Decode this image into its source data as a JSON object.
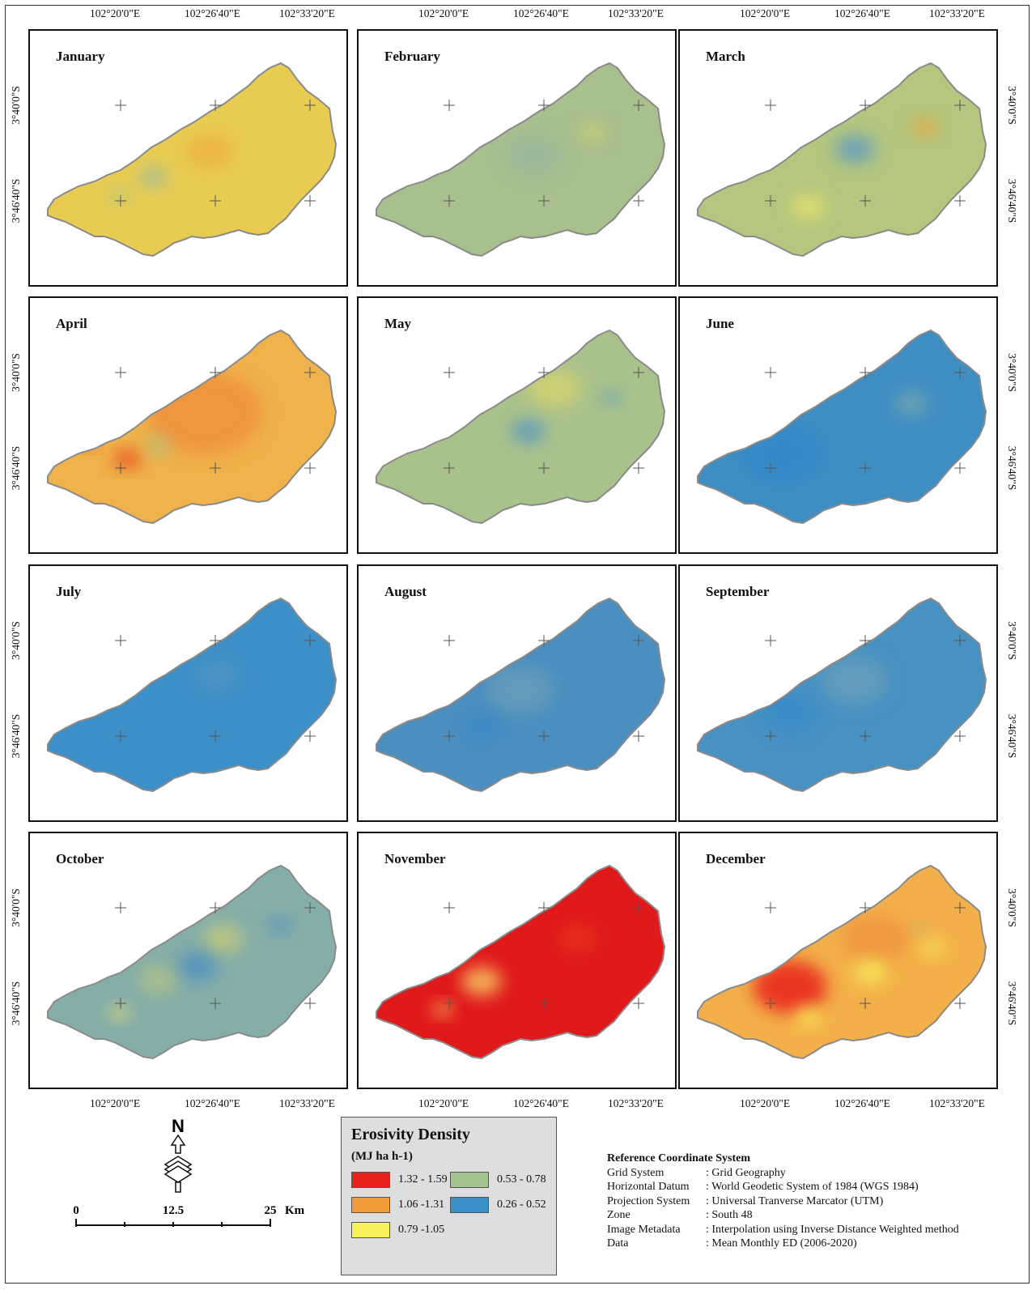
{
  "months": [
    "January",
    "February",
    "March",
    "April",
    "May",
    "June",
    "July",
    "August",
    "September",
    "October",
    "November",
    "December"
  ],
  "lon_ticks": [
    "102°20'0\"E",
    "102°26'40\"E",
    "102°33'20\"E"
  ],
  "lat_ticks": [
    "3°40'0\"S",
    "3°46'40\"S"
  ],
  "legend": {
    "title": "Erosivity Density",
    "unit": "(MJ ha h-1)",
    "classes": [
      {
        "label": "1.32 - 1.59",
        "color": "#e8211d"
      },
      {
        "label": "1.06 -1.31",
        "color": "#f39a3a"
      },
      {
        "label": "0.79 -1.05",
        "color": "#f7f15c"
      },
      {
        "label": "0.53 - 0.78",
        "color": "#a3c48f"
      },
      {
        "label": "0.26 - 0.52",
        "color": "#3a8fc9"
      }
    ]
  },
  "north_arrow": {
    "label": "N",
    "icon": "north-arrow-icon"
  },
  "scale_bar": {
    "labels": [
      "0",
      "12.5",
      "25"
    ],
    "unit": "Km"
  },
  "reference": {
    "title": "Reference Coordinate System",
    "rows": [
      {
        "key": "Grid System",
        "value": ": Grid Geography"
      },
      {
        "key": "Horizontal Datum",
        "value": ": World Geodetic System of 1984 (WGS 1984)"
      },
      {
        "key": "Projection System",
        "value": ": Universal Tranverse Marcator (UTM)"
      },
      {
        "key": "Zone",
        "value": ": South 48"
      },
      {
        "key": "Image Metadata",
        "value": ": Interpolation using Inverse Distance Weighted method"
      },
      {
        "key": "Data",
        "value": ": Mean Monthly ED (2006-2020)"
      }
    ]
  },
  "month_styles": [
    {
      "base": "#e8cc52",
      "blobs": [
        {
          "c": "#f0a23a",
          "a": 0.55,
          "u": 0.57,
          "v": 0.48,
          "r": 0.07
        },
        {
          "c": "#8db7b8",
          "a": 0.7,
          "u": 0.35,
          "v": 0.62,
          "r": 0.04
        },
        {
          "c": "#a3c48f",
          "a": 0.7,
          "u": 0.22,
          "v": 0.72,
          "r": 0.03
        }
      ]
    },
    {
      "base": "#a8bf8e",
      "blobs": [
        {
          "c": "#d9d56b",
          "a": 0.6,
          "u": 0.78,
          "v": 0.38,
          "r": 0.04
        },
        {
          "c": "#8fb3a6",
          "a": 0.5,
          "u": 0.55,
          "v": 0.5,
          "r": 0.08
        }
      ]
    },
    {
      "base": "#b5c77f",
      "blobs": [
        {
          "c": "#f0a23a",
          "a": 0.7,
          "u": 0.82,
          "v": 0.35,
          "r": 0.04
        },
        {
          "c": "#5b98c6",
          "a": 0.75,
          "u": 0.55,
          "v": 0.47,
          "r": 0.06
        },
        {
          "c": "#f2e469",
          "a": 0.7,
          "u": 0.37,
          "v": 0.78,
          "r": 0.05
        }
      ]
    },
    {
      "base": "#f0b24a",
      "blobs": [
        {
          "c": "#ee8a3a",
          "a": 0.7,
          "u": 0.55,
          "v": 0.45,
          "r": 0.17
        },
        {
          "c": "#e8421f",
          "a": 0.8,
          "u": 0.25,
          "v": 0.7,
          "r": 0.04
        },
        {
          "c": "#e8421f",
          "a": 0.7,
          "u": 0.11,
          "v": 0.63,
          "r": 0.02
        },
        {
          "c": "#a3c48f",
          "a": 0.6,
          "u": 0.37,
          "v": 0.63,
          "r": 0.04
        }
      ]
    },
    {
      "base": "#a9c28c",
      "blobs": [
        {
          "c": "#e6d766",
          "a": 0.6,
          "u": 0.63,
          "v": 0.32,
          "r": 0.08
        },
        {
          "c": "#4e8fca",
          "a": 0.7,
          "u": 0.53,
          "v": 0.55,
          "r": 0.05
        },
        {
          "c": "#5b98c6",
          "a": 0.6,
          "u": 0.85,
          "v": 0.37,
          "r": 0.03
        }
      ]
    },
    {
      "base": "#3f8ec3",
      "blobs": [
        {
          "c": "#2e86c9",
          "a": 0.6,
          "u": 0.27,
          "v": 0.67,
          "r": 0.12
        },
        {
          "c": "#8fb3a6",
          "a": 0.55,
          "u": 0.77,
          "v": 0.4,
          "r": 0.05
        }
      ]
    },
    {
      "base": "#3d8fc7",
      "blobs": [
        {
          "c": "#6a9fbd",
          "a": 0.4,
          "u": 0.6,
          "v": 0.42,
          "r": 0.06
        }
      ]
    },
    {
      "base": "#4b8fc0",
      "blobs": [
        {
          "c": "#7aa6b6",
          "a": 0.5,
          "u": 0.5,
          "v": 0.5,
          "r": 0.1
        },
        {
          "c": "#2e86c9",
          "a": 0.6,
          "u": 0.35,
          "v": 0.7,
          "r": 0.05
        }
      ]
    },
    {
      "base": "#4892c3",
      "blobs": [
        {
          "c": "#7aa6b6",
          "a": 0.5,
          "u": 0.55,
          "v": 0.45,
          "r": 0.1
        },
        {
          "c": "#2e86c9",
          "a": 0.5,
          "u": 0.3,
          "v": 0.62,
          "r": 0.08
        }
      ]
    },
    {
      "base": "#86aea8",
      "blobs": [
        {
          "c": "#d9d56b",
          "a": 0.6,
          "u": 0.62,
          "v": 0.4,
          "r": 0.06
        },
        {
          "c": "#3f88c9",
          "a": 0.65,
          "u": 0.52,
          "v": 0.55,
          "r": 0.06
        },
        {
          "c": "#3f88c9",
          "a": 0.7,
          "u": 0.84,
          "v": 0.33,
          "r": 0.03
        },
        {
          "c": "#f2e469",
          "a": 0.7,
          "u": 0.22,
          "v": 0.8,
          "r": 0.03
        },
        {
          "c": "#d9d56b",
          "a": 0.4,
          "u": 0.37,
          "v": 0.62,
          "r": 0.06
        }
      ]
    },
    {
      "base": "#e0191b",
      "blobs": [
        {
          "c": "#f7d36a",
          "a": 0.8,
          "u": 0.35,
          "v": 0.63,
          "r": 0.06
        },
        {
          "c": "#f7d36a",
          "a": 0.7,
          "u": 0.2,
          "v": 0.78,
          "r": 0.03
        },
        {
          "c": "#e8421f",
          "a": 0.5,
          "u": 0.72,
          "v": 0.4,
          "r": 0.06
        }
      ]
    },
    {
      "base": "#f3b04a",
      "blobs": [
        {
          "c": "#e8211d",
          "a": 0.85,
          "u": 0.3,
          "v": 0.66,
          "r": 0.11
        },
        {
          "c": "#ee8a3a",
          "a": 0.6,
          "u": 0.63,
          "v": 0.4,
          "r": 0.1
        },
        {
          "c": "#f7f15c",
          "a": 0.8,
          "u": 0.61,
          "v": 0.58,
          "r": 0.05
        },
        {
          "c": "#f7f15c",
          "a": 0.8,
          "u": 0.37,
          "v": 0.82,
          "r": 0.04
        },
        {
          "c": "#f7f15c",
          "a": 0.6,
          "u": 0.85,
          "v": 0.45,
          "r": 0.04
        },
        {
          "c": "#a3c48f",
          "a": 0.6,
          "u": 0.8,
          "v": 0.35,
          "r": 0.02
        }
      ]
    }
  ]
}
